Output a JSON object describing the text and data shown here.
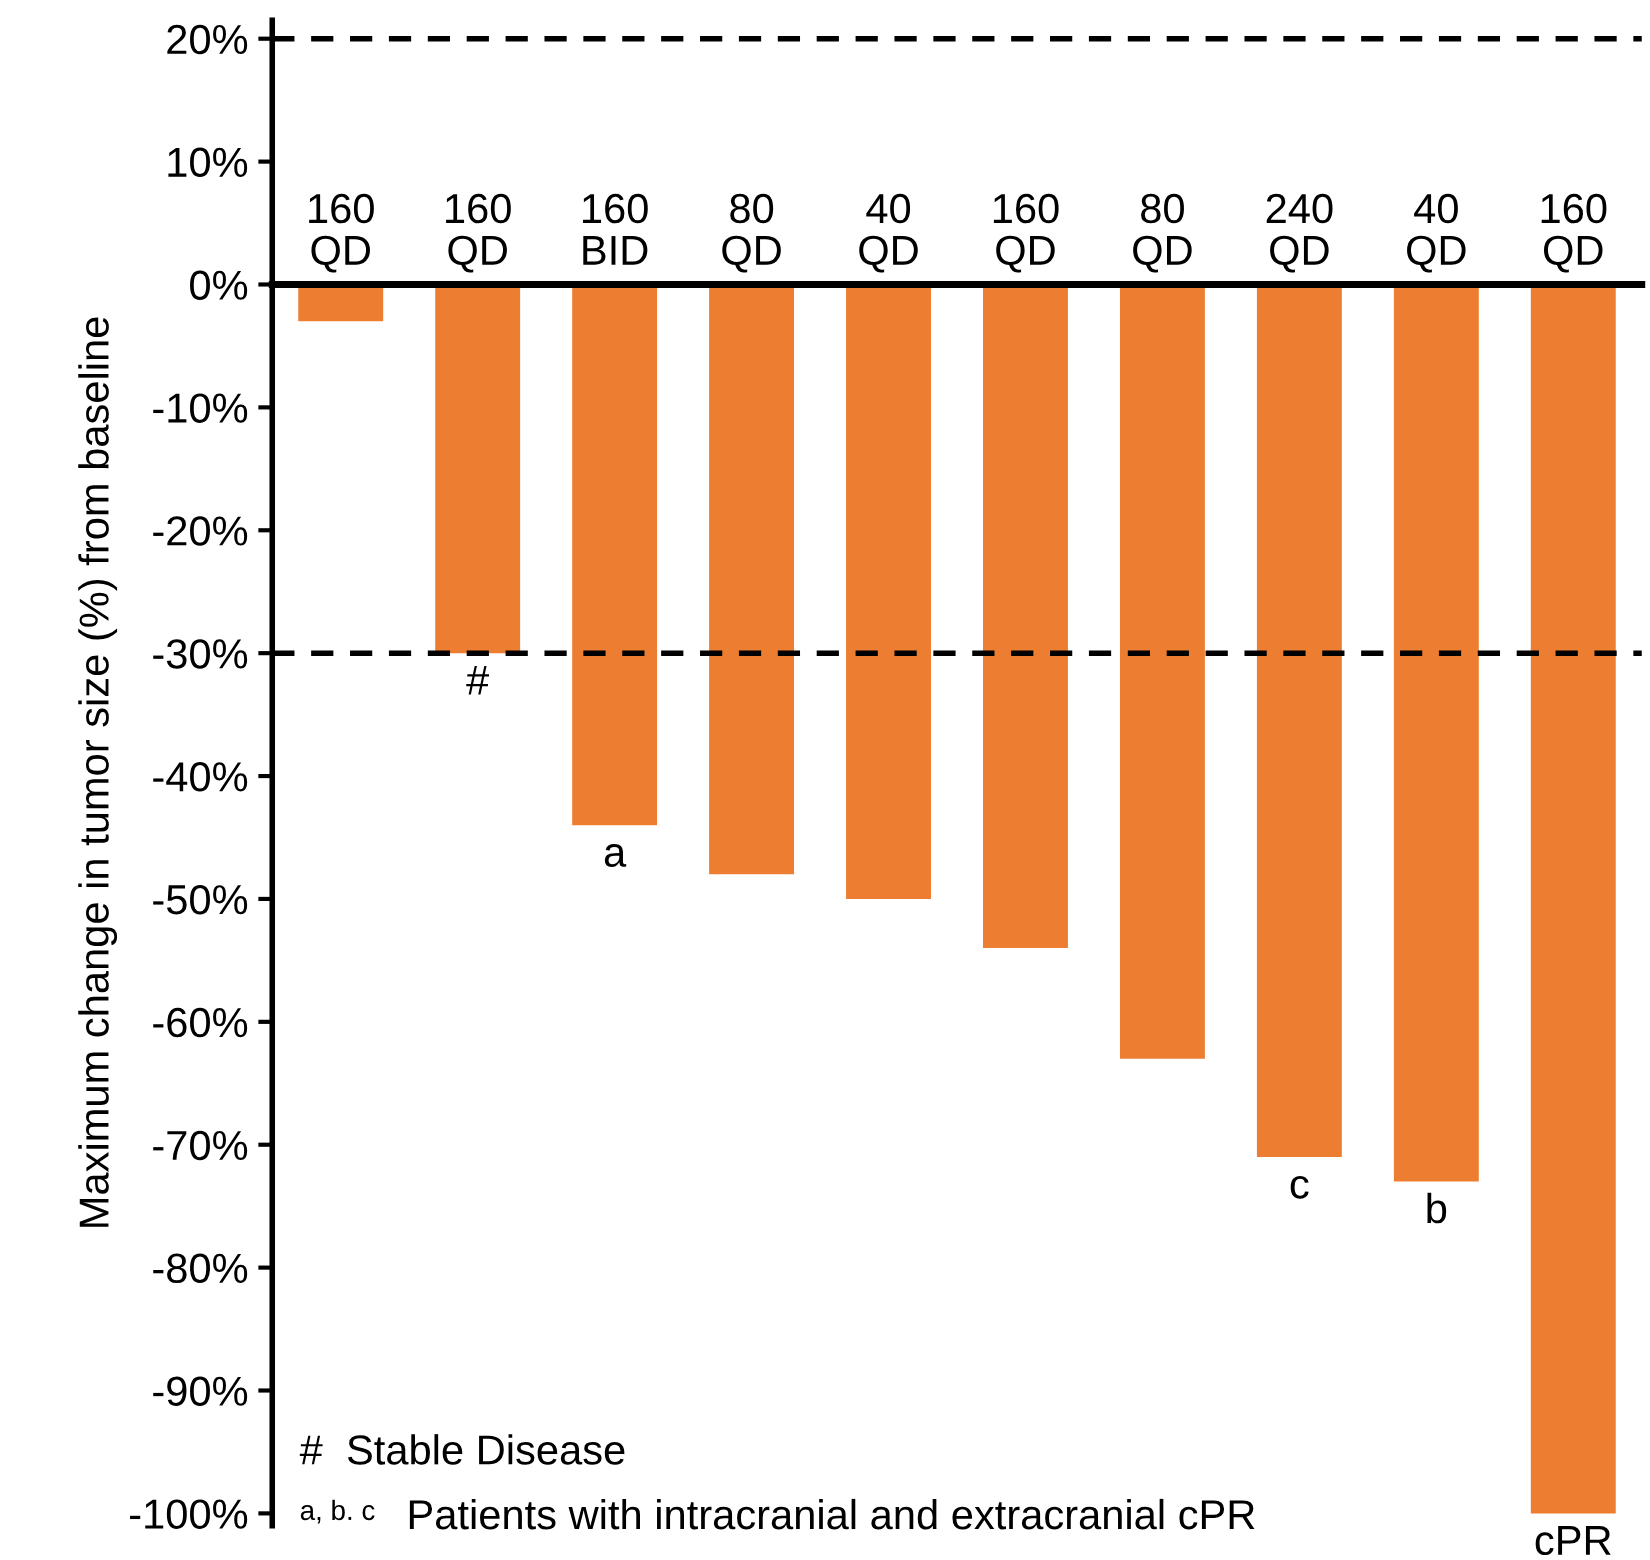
{
  "chart_data": {
    "type": "bar",
    "ylabel": "Maximum change in tumor size (%) from baseline",
    "categories": [
      "160\nQD",
      "160\nQD",
      "160\nBID",
      "80\nQD",
      "40\nQD",
      "160\nQD",
      "80\nQD",
      "240\nQD",
      "40\nQD",
      "160\nQD"
    ],
    "values": [
      -3,
      -30,
      -44,
      -48,
      -50,
      -54,
      -63,
      -71,
      -73,
      -100
    ],
    "value_labels": [
      null,
      "#",
      "a",
      null,
      null,
      null,
      null,
      "c",
      "b",
      "cPR"
    ],
    "color": "#ed7d31",
    "ylim": [
      -101,
      21.5
    ],
    "yticks": [
      {
        "value": -100,
        "label": "-100%"
      },
      {
        "value": -90,
        "label": "-90%"
      },
      {
        "value": -80,
        "label": "-80%"
      },
      {
        "value": -70,
        "label": "-70%"
      },
      {
        "value": -60,
        "label": "-60%"
      },
      {
        "value": -50,
        "label": "-50%"
      },
      {
        "value": -40,
        "label": "-40%"
      },
      {
        "value": -30,
        "label": "-30%"
      },
      {
        "value": -20,
        "label": "-20%"
      },
      {
        "value": -10,
        "label": "-10%"
      },
      {
        "value": 0,
        "label": "0%"
      },
      {
        "value": 10,
        "label": "10%"
      },
      {
        "value": 20,
        "label": "20%"
      }
    ],
    "ref_lines": [
      {
        "axis": "y",
        "value": 20,
        "label": null,
        "color": "#000000",
        "line_style": "dashed"
      },
      {
        "axis": "y",
        "value": -30,
        "label": null,
        "color": "#000000",
        "line_style": "dashed"
      }
    ],
    "annotations": [
      "#  Stable Disease",
      "a, b. c",
      "Patients with intracranial and extracranial cPR"
    ],
    "grid": false,
    "legend": false
  }
}
